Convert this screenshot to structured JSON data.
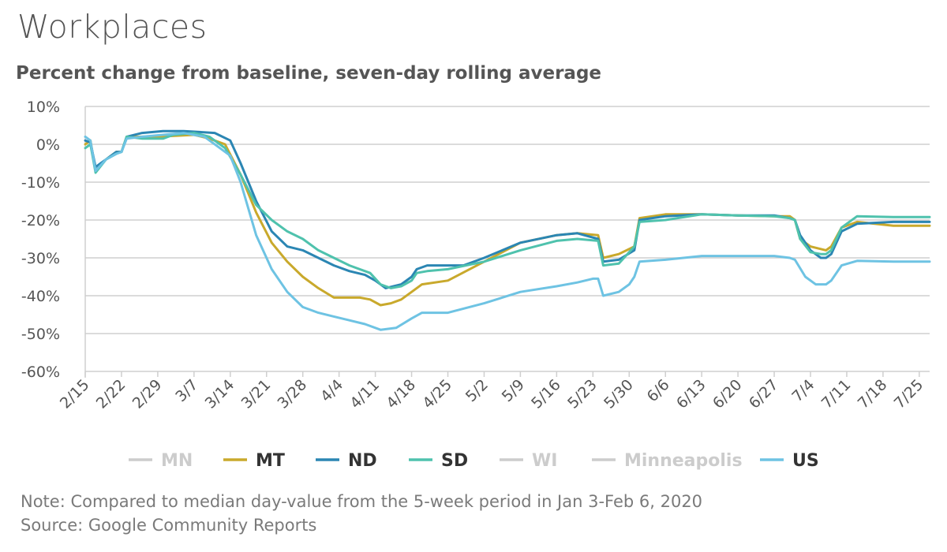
{
  "chart_data": {
    "type": "line",
    "title": "Workplaces",
    "subtitle": "Percent change from baseline, seven-day rolling average",
    "xlabel": "",
    "ylabel": "",
    "ylim": [
      -60,
      10
    ],
    "y_ticks": [
      "10%",
      "0%",
      "-10%",
      "-20%",
      "-30%",
      "-40%",
      "-50%",
      "-60%"
    ],
    "x_range": [
      "2/15",
      "7/27"
    ],
    "x_ticks": [
      "2/15",
      "2/22",
      "2/29",
      "3/7",
      "3/14",
      "3/21",
      "3/28",
      "4/4",
      "4/11",
      "4/18",
      "4/25",
      "5/2",
      "5/9",
      "5/16",
      "5/23",
      "5/30",
      "6/6",
      "6/13",
      "6/20",
      "6/27",
      "7/4",
      "7/11",
      "7/18",
      "7/25"
    ],
    "grid": true,
    "legend_position": "bottom",
    "legend": [
      {
        "name": "MN",
        "color": "#cccccc",
        "active": false
      },
      {
        "name": "MT",
        "color": "#c9a92c",
        "active": true
      },
      {
        "name": "ND",
        "color": "#2b86b3",
        "active": true
      },
      {
        "name": "SD",
        "color": "#4fc2ad",
        "active": true
      },
      {
        "name": "WI",
        "color": "#cccccc",
        "active": false
      },
      {
        "name": "Minneapolis",
        "color": "#cccccc",
        "active": false
      },
      {
        "name": "US",
        "color": "#6ec3e3",
        "active": true
      }
    ],
    "series": [
      {
        "name": "MT",
        "color": "#c9a92c",
        "points": [
          [
            "2/15",
            0
          ],
          [
            "2/16",
            1
          ],
          [
            "2/17",
            -7
          ],
          [
            "2/19",
            -4
          ],
          [
            "2/21",
            -2
          ],
          [
            "2/22",
            -2
          ],
          [
            "2/23",
            2
          ],
          [
            "2/26",
            2
          ],
          [
            "2/29",
            2
          ],
          [
            "3/7",
            2.5
          ],
          [
            "3/10",
            1.5
          ],
          [
            "3/13",
            0
          ],
          [
            "3/16",
            -8
          ],
          [
            "3/19",
            -18
          ],
          [
            "3/22",
            -26
          ],
          [
            "3/25",
            -31
          ],
          [
            "3/28",
            -35
          ],
          [
            "3/31",
            -38
          ],
          [
            "4/3",
            -40.5
          ],
          [
            "4/6",
            -40.5
          ],
          [
            "4/8",
            -40.5
          ],
          [
            "4/10",
            -41
          ],
          [
            "4/12",
            -42.5
          ],
          [
            "4/14",
            -42
          ],
          [
            "4/16",
            -41
          ],
          [
            "4/18",
            -39
          ],
          [
            "4/20",
            -37
          ],
          [
            "4/25",
            -36
          ],
          [
            "5/2",
            -31
          ],
          [
            "5/9",
            -26
          ],
          [
            "5/16",
            -24
          ],
          [
            "5/20",
            -23.5
          ],
          [
            "5/24",
            -24
          ],
          [
            "5/25",
            -30
          ],
          [
            "5/28",
            -29
          ],
          [
            "5/31",
            -27
          ],
          [
            "6/1",
            -19.5
          ],
          [
            "6/6",
            -18.5
          ],
          [
            "6/13",
            -18.5
          ],
          [
            "6/20",
            -18.8
          ],
          [
            "6/27",
            -19
          ],
          [
            "6/30",
            -19
          ],
          [
            "7/1",
            -20
          ],
          [
            "7/2",
            -25
          ],
          [
            "7/4",
            -27
          ],
          [
            "7/7",
            -28
          ],
          [
            "7/8",
            -27
          ],
          [
            "7/10",
            -22
          ],
          [
            "7/13",
            -20.5
          ],
          [
            "7/20",
            -21.5
          ],
          [
            "7/25",
            -21.5
          ],
          [
            "7/27",
            -21.5
          ]
        ]
      },
      {
        "name": "ND",
        "color": "#2b86b3",
        "points": [
          [
            "2/15",
            1
          ],
          [
            "2/16",
            0.5
          ],
          [
            "2/17",
            -6
          ],
          [
            "2/19",
            -4
          ],
          [
            "2/21",
            -2
          ],
          [
            "2/22",
            -2
          ],
          [
            "2/23",
            2
          ],
          [
            "2/26",
            3
          ],
          [
            "3/1",
            3.5
          ],
          [
            "3/5",
            3.5
          ],
          [
            "3/11",
            3
          ],
          [
            "3/14",
            1
          ],
          [
            "3/16",
            -5
          ],
          [
            "3/19",
            -15
          ],
          [
            "3/22",
            -23
          ],
          [
            "3/25",
            -27
          ],
          [
            "3/28",
            -28
          ],
          [
            "3/31",
            -30
          ],
          [
            "4/3",
            -32
          ],
          [
            "4/6",
            -33.5
          ],
          [
            "4/9",
            -34.5
          ],
          [
            "4/11",
            -36
          ],
          [
            "4/13",
            -38
          ],
          [
            "4/16",
            -37
          ],
          [
            "4/18",
            -35
          ],
          [
            "4/19",
            -33
          ],
          [
            "4/21",
            -32
          ],
          [
            "4/25",
            -32
          ],
          [
            "4/28",
            -32
          ],
          [
            "5/2",
            -30
          ],
          [
            "5/9",
            -26
          ],
          [
            "5/16",
            -24
          ],
          [
            "5/20",
            -23.5
          ],
          [
            "5/24",
            -25
          ],
          [
            "5/25",
            -31
          ],
          [
            "5/28",
            -30.5
          ],
          [
            "5/31",
            -28
          ],
          [
            "6/1",
            -20
          ],
          [
            "6/6",
            -19
          ],
          [
            "6/13",
            -18.5
          ],
          [
            "6/20",
            -18.8
          ],
          [
            "6/27",
            -18.8
          ],
          [
            "6/30",
            -19.5
          ],
          [
            "7/1",
            -20
          ],
          [
            "7/2",
            -24
          ],
          [
            "7/4",
            -28
          ],
          [
            "7/6",
            -30
          ],
          [
            "7/7",
            -30
          ],
          [
            "7/8",
            -29
          ],
          [
            "7/10",
            -23
          ],
          [
            "7/13",
            -21
          ],
          [
            "7/20",
            -20.5
          ],
          [
            "7/25",
            -20.5
          ],
          [
            "7/27",
            -20.5
          ]
        ]
      },
      {
        "name": "SD",
        "color": "#4fc2ad",
        "points": [
          [
            "2/15",
            -1
          ],
          [
            "2/16",
            0
          ],
          [
            "2/17",
            -7.5
          ],
          [
            "2/19",
            -4
          ],
          [
            "2/21",
            -2.5
          ],
          [
            "2/22",
            -2
          ],
          [
            "2/23",
            2
          ],
          [
            "2/26",
            1.5
          ],
          [
            "3/1",
            1.5
          ],
          [
            "3/3",
            2.5
          ],
          [
            "3/7",
            3
          ],
          [
            "3/10",
            2
          ],
          [
            "3/13",
            -1
          ],
          [
            "3/16",
            -8
          ],
          [
            "3/19",
            -16
          ],
          [
            "3/22",
            -20
          ],
          [
            "3/25",
            -23
          ],
          [
            "3/28",
            -25
          ],
          [
            "3/31",
            -28
          ],
          [
            "4/3",
            -30
          ],
          [
            "4/6",
            -32
          ],
          [
            "4/10",
            -34
          ],
          [
            "4/12",
            -37
          ],
          [
            "4/14",
            -38
          ],
          [
            "4/16",
            -37.5
          ],
          [
            "4/18",
            -36
          ],
          [
            "4/19",
            -34
          ],
          [
            "4/21",
            -33.5
          ],
          [
            "4/25",
            -33
          ],
          [
            "5/2",
            -31
          ],
          [
            "5/9",
            -28
          ],
          [
            "5/16",
            -25.5
          ],
          [
            "5/20",
            -25
          ],
          [
            "5/24",
            -25.5
          ],
          [
            "5/25",
            -32
          ],
          [
            "5/28",
            -31.5
          ],
          [
            "5/31",
            -27
          ],
          [
            "6/1",
            -20.5
          ],
          [
            "6/6",
            -20
          ],
          [
            "6/13",
            -18.5
          ],
          [
            "6/20",
            -18.8
          ],
          [
            "6/27",
            -19
          ],
          [
            "6/30",
            -19.5
          ],
          [
            "7/1",
            -20
          ],
          [
            "7/2",
            -25
          ],
          [
            "7/4",
            -28.5
          ],
          [
            "7/6",
            -29
          ],
          [
            "7/7",
            -29
          ],
          [
            "7/8",
            -28
          ],
          [
            "7/10",
            -22
          ],
          [
            "7/13",
            -19
          ],
          [
            "7/20",
            -19.2
          ],
          [
            "7/25",
            -19.2
          ],
          [
            "7/27",
            -19.2
          ]
        ]
      },
      {
        "name": "US",
        "color": "#6ec3e3",
        "points": [
          [
            "2/15",
            2
          ],
          [
            "2/16",
            1
          ],
          [
            "2/17",
            -7
          ],
          [
            "2/19",
            -4
          ],
          [
            "2/21",
            -2.5
          ],
          [
            "2/22",
            -2
          ],
          [
            "2/23",
            1.5
          ],
          [
            "2/26",
            2
          ],
          [
            "3/1",
            2.5
          ],
          [
            "3/5",
            3
          ],
          [
            "3/9",
            2
          ],
          [
            "3/12",
            -1
          ],
          [
            "3/14",
            -3
          ],
          [
            "3/16",
            -10
          ],
          [
            "3/19",
            -24
          ],
          [
            "3/22",
            -33
          ],
          [
            "3/25",
            -39
          ],
          [
            "3/28",
            -43
          ],
          [
            "3/31",
            -44.5
          ],
          [
            "4/3",
            -45.5
          ],
          [
            "4/6",
            -46.5
          ],
          [
            "4/9",
            -47.5
          ],
          [
            "4/12",
            -49
          ],
          [
            "4/15",
            -48.5
          ],
          [
            "4/18",
            -46
          ],
          [
            "4/20",
            -44.5
          ],
          [
            "4/25",
            -44.5
          ],
          [
            "5/2",
            -42
          ],
          [
            "5/9",
            -39
          ],
          [
            "5/16",
            -37.5
          ],
          [
            "5/20",
            -36.5
          ],
          [
            "5/23",
            -35.5
          ],
          [
            "5/24",
            -35.5
          ],
          [
            "5/25",
            -40
          ],
          [
            "5/28",
            -39
          ],
          [
            "5/30",
            -37
          ],
          [
            "5/31",
            -35
          ],
          [
            "6/1",
            -31
          ],
          [
            "6/6",
            -30.5
          ],
          [
            "6/13",
            -29.5
          ],
          [
            "6/20",
            -29.5
          ],
          [
            "6/27",
            -29.5
          ],
          [
            "6/30",
            -30
          ],
          [
            "7/1",
            -30.5
          ],
          [
            "7/3",
            -35
          ],
          [
            "7/5",
            -37
          ],
          [
            "7/7",
            -37
          ],
          [
            "7/8",
            -36
          ],
          [
            "7/10",
            -32
          ],
          [
            "7/13",
            -30.8
          ],
          [
            "7/20",
            -31
          ],
          [
            "7/25",
            -31
          ],
          [
            "7/27",
            -31
          ]
        ]
      }
    ]
  },
  "notes": {
    "note": "Note: Compared to median day-value from the 5-week period in Jan 3-Feb 6, 2020",
    "source": "Source: Google Community Reports"
  }
}
